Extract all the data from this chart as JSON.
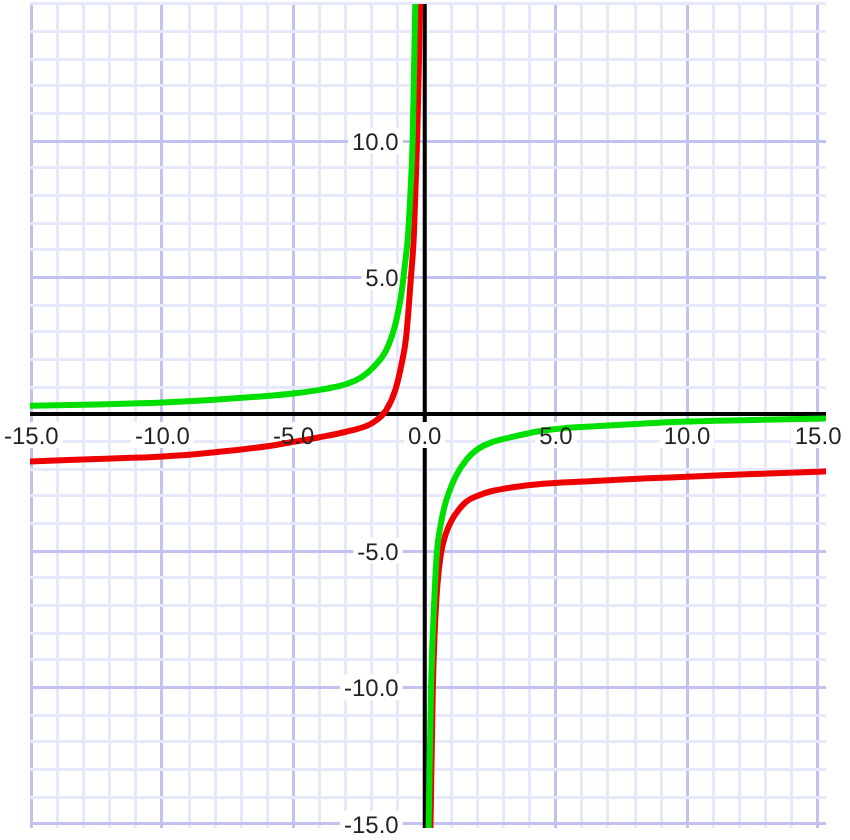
{
  "chart_data": {
    "type": "line",
    "series": [
      {
        "color": "#00e000",
        "x": [
          -15.05,
          -12.5,
          -10,
          -8,
          -6,
          -5,
          -4,
          -2.91,
          -2.4,
          -1.96,
          -1.48,
          -1.12,
          -0.88,
          -0.76,
          -0.64,
          -0.55,
          -0.46,
          -0.41,
          -0.36,
          -0.1,
          0.15,
          0.24,
          0.38,
          0.47,
          0.6,
          0.75,
          0.9,
          1.2,
          1.61,
          2.0,
          2.57,
          3.3,
          4.24,
          5.0,
          6.5,
          8.0,
          10.0,
          12.5,
          15.3
        ],
        "values": [
          0.3,
          0.35,
          0.42,
          0.52,
          0.66,
          0.75,
          0.88,
          1.12,
          1.35,
          1.71,
          2.31,
          3.28,
          4.47,
          5.43,
          6.5,
          8.0,
          10.0,
          12.5,
          15.0,
          null,
          -15.1,
          -10.0,
          -6.5,
          -5.0,
          -4.1,
          -3.4,
          -2.94,
          -2.25,
          -1.65,
          -1.3,
          -1.03,
          -0.85,
          -0.65,
          -0.55,
          -0.45,
          -0.37,
          -0.28,
          -0.22,
          -0.17
        ]
      },
      {
        "color": "#ee0000",
        "x": [
          -15.05,
          -12.5,
          -10,
          -8,
          -6,
          -5,
          -4,
          -3,
          -2.2,
          -1.96,
          -1.48,
          -1.12,
          -0.88,
          -0.71,
          -0.53,
          -0.41,
          -0.29,
          -0.23,
          -0.17,
          0.0,
          0.22,
          0.31,
          0.38,
          0.48,
          0.62,
          0.8,
          1.02,
          1.3,
          1.6,
          2.0,
          2.57,
          4.24,
          6.26,
          8.5,
          10.0,
          12.5,
          15.3
        ],
        "values": [
          -1.74,
          -1.65,
          -1.56,
          -1.4,
          -1.18,
          -1.02,
          -0.85,
          -0.65,
          -0.43,
          -0.31,
          0.12,
          0.88,
          1.84,
          2.8,
          4.95,
          6.6,
          10.0,
          12.5,
          15.0,
          null,
          -15.1,
          -10.0,
          -8.0,
          -6.3,
          -5.1,
          -4.4,
          -3.9,
          -3.5,
          -3.2,
          -3.0,
          -2.82,
          -2.58,
          -2.46,
          -2.35,
          -2.3,
          -2.2,
          -2.1
        ]
      }
    ],
    "xlim": [
      -15.05,
      15.3
    ],
    "ylim": [
      -15.15,
      15.0
    ],
    "xticks": [
      {
        "value": -15,
        "label": "-15.0"
      },
      {
        "value": -14,
        "label": null
      },
      {
        "value": -13,
        "label": null
      },
      {
        "value": -12,
        "label": null
      },
      {
        "value": -11,
        "label": null
      },
      {
        "value": -10,
        "label": "-10.0"
      },
      {
        "value": -9,
        "label": null
      },
      {
        "value": -8,
        "label": null
      },
      {
        "value": -7,
        "label": null
      },
      {
        "value": -6,
        "label": null
      },
      {
        "value": -5,
        "label": "-5.0"
      },
      {
        "value": -4,
        "label": null
      },
      {
        "value": -3,
        "label": null
      },
      {
        "value": -2,
        "label": null
      },
      {
        "value": -1,
        "label": null
      },
      {
        "value": 0,
        "label": "0.0"
      },
      {
        "value": 1,
        "label": null
      },
      {
        "value": 2,
        "label": null
      },
      {
        "value": 3,
        "label": null
      },
      {
        "value": 4,
        "label": null
      },
      {
        "value": 5,
        "label": "5.0"
      },
      {
        "value": 6,
        "label": null
      },
      {
        "value": 7,
        "label": null
      },
      {
        "value": 8,
        "label": null
      },
      {
        "value": 9,
        "label": null
      },
      {
        "value": 10,
        "label": "10.0"
      },
      {
        "value": 11,
        "label": null
      },
      {
        "value": 12,
        "label": null
      },
      {
        "value": 13,
        "label": null
      },
      {
        "value": 14,
        "label": null
      },
      {
        "value": 15,
        "label": "15.0"
      }
    ],
    "yticks": [
      {
        "value": -15,
        "label": "-15.0"
      },
      {
        "value": -14,
        "label": null
      },
      {
        "value": -13,
        "label": null
      },
      {
        "value": -12,
        "label": null
      },
      {
        "value": -11,
        "label": null
      },
      {
        "value": -10,
        "label": "-10.0"
      },
      {
        "value": -9,
        "label": null
      },
      {
        "value": -8,
        "label": null
      },
      {
        "value": -7,
        "label": null
      },
      {
        "value": -6,
        "label": null
      },
      {
        "value": -5,
        "label": "-5.0"
      },
      {
        "value": -4,
        "label": null
      },
      {
        "value": -3,
        "label": null
      },
      {
        "value": -2,
        "label": null
      },
      {
        "value": -1,
        "label": null
      },
      {
        "value": 0,
        "label": null
      },
      {
        "value": 1,
        "label": null
      },
      {
        "value": 2,
        "label": null
      },
      {
        "value": 3,
        "label": null
      },
      {
        "value": 4,
        "label": null
      },
      {
        "value": 5,
        "label": "5.0"
      },
      {
        "value": 6,
        "label": null
      },
      {
        "value": 7,
        "label": null
      },
      {
        "value": 8,
        "label": null
      },
      {
        "value": 9,
        "label": null
      },
      {
        "value": 10,
        "label": "10.0"
      },
      {
        "value": 11,
        "label": null
      },
      {
        "value": 12,
        "label": null
      },
      {
        "value": 13,
        "label": null
      },
      {
        "value": 14,
        "label": null
      },
      {
        "value": 15,
        "label": null
      }
    ],
    "grid": true,
    "marker": "none",
    "line_style": "solid"
  }
}
